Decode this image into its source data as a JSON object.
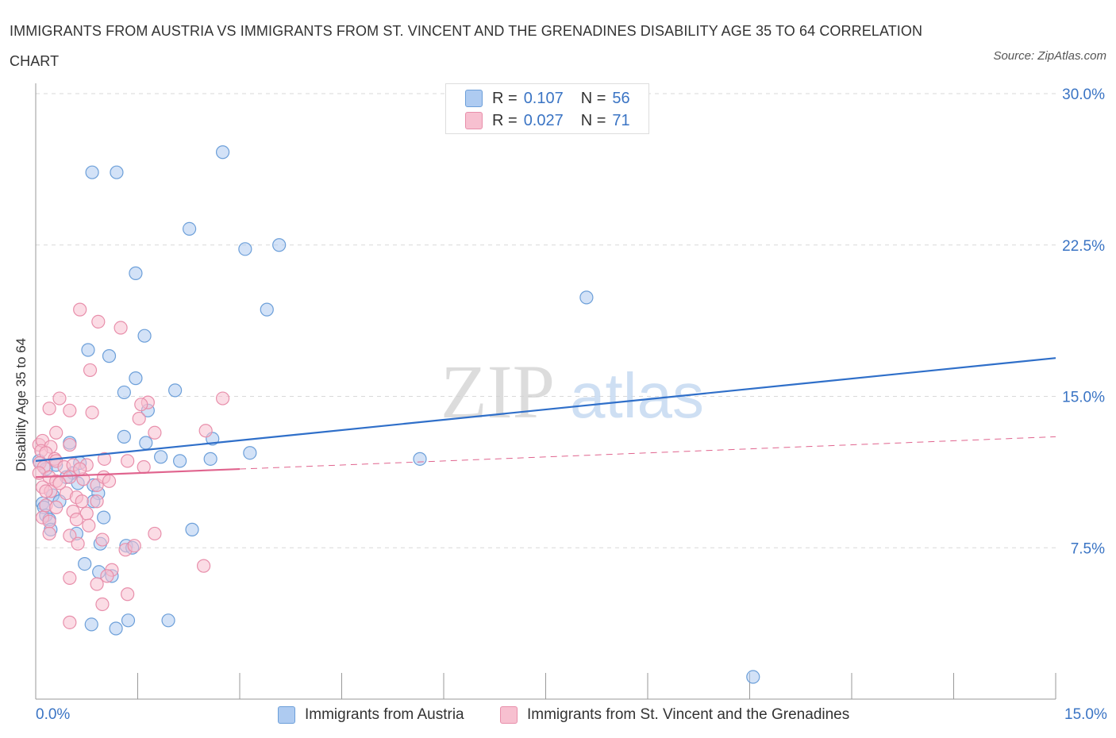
{
  "title": "IMMIGRANTS FROM AUSTRIA VS IMMIGRANTS FROM ST. VINCENT AND THE GRENADINES DISABILITY AGE 35 TO 64 CORRELATION CHART",
  "source": "Source: ZipAtlas.com",
  "watermark": {
    "zip": "ZIP",
    "atlas": "atlas"
  },
  "legend": {
    "r_label": "R =",
    "n_label": "N =",
    "rows": [
      {
        "r": "0.107",
        "n": "56",
        "color": "#aecbf1"
      },
      {
        "r": "0.027",
        "n": "71",
        "color": "#f7c0d0"
      }
    ]
  },
  "colors": {
    "austria_fill": "#aecbf1",
    "austria_stroke": "#6c9fd9",
    "austria_line": "#2f6fc9",
    "svg_fill": "#f7c0d0",
    "svg_stroke": "#e88fab",
    "svg_line": "#e0648e",
    "grid": "#d9d9d9",
    "axis_text": "#3a74c4"
  },
  "chart_data": {
    "type": "scatter",
    "title": "IMMIGRANTS FROM AUSTRIA VS IMMIGRANTS FROM ST. VINCENT AND THE GRENADINES DISABILITY AGE 35 TO 64 CORRELATION CHART",
    "xlabel": "",
    "ylabel": "Disability Age 35 to 64",
    "xlim": [
      0,
      15
    ],
    "ylim": [
      0,
      30
    ],
    "x_tick_labels": [
      "0.0%",
      "15.0%"
    ],
    "y_tick_labels": [
      "7.5%",
      "15.0%",
      "22.5%",
      "30.0%"
    ],
    "y_ticks": [
      7.5,
      15,
      22.5,
      30
    ],
    "grid": true,
    "legend_position": "top-center",
    "series": [
      {
        "name": "Immigrants from Austria",
        "r": 0.107,
        "n": 56,
        "trend": {
          "x": [
            0,
            15
          ],
          "y": [
            11.8,
            16.9
          ],
          "dashed_from": null
        },
        "points": [
          [
            0.83,
            26.1
          ],
          [
            1.19,
            26.1
          ],
          [
            2.75,
            27.1
          ],
          [
            2.26,
            23.3
          ],
          [
            3.08,
            22.3
          ],
          [
            3.58,
            22.5
          ],
          [
            1.47,
            21.1
          ],
          [
            3.4,
            19.3
          ],
          [
            8.1,
            19.9
          ],
          [
            1.6,
            18.0
          ],
          [
            0.77,
            17.3
          ],
          [
            1.08,
            17.0
          ],
          [
            1.47,
            15.9
          ],
          [
            2.05,
            15.3
          ],
          [
            1.3,
            15.2
          ],
          [
            1.65,
            14.3
          ],
          [
            0.5,
            12.7
          ],
          [
            1.3,
            13.0
          ],
          [
            2.6,
            12.9
          ],
          [
            1.62,
            12.7
          ],
          [
            3.15,
            12.2
          ],
          [
            1.84,
            12.0
          ],
          [
            2.12,
            11.8
          ],
          [
            2.57,
            11.9
          ],
          [
            5.65,
            11.9
          ],
          [
            0.3,
            11.6
          ],
          [
            0.65,
            11.7
          ],
          [
            0.05,
            11.8
          ],
          [
            0.15,
            11.4
          ],
          [
            0.55,
            11.2
          ],
          [
            0.62,
            10.7
          ],
          [
            0.45,
            11.0
          ],
          [
            0.85,
            10.6
          ],
          [
            0.92,
            10.2
          ],
          [
            0.25,
            10.1
          ],
          [
            0.85,
            9.8
          ],
          [
            0.35,
            9.8
          ],
          [
            0.1,
            9.7
          ],
          [
            0.12,
            9.5
          ],
          [
            0.15,
            9.1
          ],
          [
            0.2,
            8.9
          ],
          [
            1.0,
            9.0
          ],
          [
            0.22,
            8.4
          ],
          [
            0.6,
            8.2
          ],
          [
            2.3,
            8.4
          ],
          [
            0.95,
            7.7
          ],
          [
            1.33,
            7.6
          ],
          [
            1.42,
            7.5
          ],
          [
            0.72,
            6.7
          ],
          [
            0.93,
            6.3
          ],
          [
            1.12,
            6.1
          ],
          [
            1.36,
            3.9
          ],
          [
            0.82,
            3.7
          ],
          [
            1.18,
            3.5
          ],
          [
            1.95,
            3.9
          ],
          [
            10.55,
            1.1
          ]
        ]
      },
      {
        "name": "Immigrants from St. Vincent and the Grenadines",
        "r": 0.027,
        "n": 71,
        "trend": {
          "x": [
            0,
            15
          ],
          "y": [
            11.0,
            13.0
          ],
          "solid_until": 3.0
        },
        "points": [
          [
            0.65,
            19.3
          ],
          [
            0.92,
            18.7
          ],
          [
            1.25,
            18.4
          ],
          [
            0.8,
            16.3
          ],
          [
            0.35,
            14.9
          ],
          [
            2.75,
            14.9
          ],
          [
            1.65,
            14.7
          ],
          [
            1.55,
            14.6
          ],
          [
            0.2,
            14.4
          ],
          [
            0.5,
            14.3
          ],
          [
            0.83,
            14.2
          ],
          [
            1.52,
            13.9
          ],
          [
            0.3,
            13.2
          ],
          [
            1.75,
            13.2
          ],
          [
            2.5,
            13.3
          ],
          [
            0.05,
            12.6
          ],
          [
            0.1,
            12.8
          ],
          [
            0.22,
            12.5
          ],
          [
            0.08,
            12.3
          ],
          [
            0.15,
            12.2
          ],
          [
            0.28,
            11.9
          ],
          [
            0.5,
            12.6
          ],
          [
            0.06,
            11.7
          ],
          [
            0.12,
            11.5
          ],
          [
            0.3,
            11.8
          ],
          [
            0.42,
            11.5
          ],
          [
            0.55,
            11.6
          ],
          [
            0.75,
            11.6
          ],
          [
            1.01,
            11.9
          ],
          [
            1.35,
            11.8
          ],
          [
            1.59,
            11.5
          ],
          [
            0.05,
            11.2
          ],
          [
            0.2,
            11.0
          ],
          [
            0.3,
            10.8
          ],
          [
            0.5,
            11.0
          ],
          [
            0.7,
            10.9
          ],
          [
            0.9,
            10.6
          ],
          [
            1.0,
            11.0
          ],
          [
            1.08,
            10.8
          ],
          [
            0.1,
            10.5
          ],
          [
            0.22,
            10.3
          ],
          [
            0.45,
            10.2
          ],
          [
            0.6,
            10.0
          ],
          [
            0.68,
            9.8
          ],
          [
            0.9,
            9.8
          ],
          [
            0.15,
            9.6
          ],
          [
            0.3,
            9.5
          ],
          [
            0.55,
            9.3
          ],
          [
            0.75,
            9.2
          ],
          [
            0.1,
            9.0
          ],
          [
            0.2,
            8.8
          ],
          [
            0.6,
            8.9
          ],
          [
            0.78,
            8.6
          ],
          [
            0.2,
            8.2
          ],
          [
            0.5,
            8.1
          ],
          [
            0.98,
            7.9
          ],
          [
            1.75,
            8.2
          ],
          [
            0.62,
            7.7
          ],
          [
            1.32,
            7.4
          ],
          [
            2.47,
            6.6
          ],
          [
            1.12,
            6.4
          ],
          [
            1.05,
            6.1
          ],
          [
            0.5,
            6.0
          ],
          [
            0.9,
            5.7
          ],
          [
            1.35,
            5.2
          ],
          [
            0.98,
            4.7
          ],
          [
            0.5,
            3.8
          ],
          [
            0.15,
            10.3
          ],
          [
            0.35,
            10.7
          ],
          [
            1.45,
            7.6
          ],
          [
            0.65,
            11.4
          ]
        ]
      }
    ]
  },
  "bottom_legend": [
    "Immigrants from Austria",
    "Immigrants from St. Vincent and the Grenadines"
  ]
}
